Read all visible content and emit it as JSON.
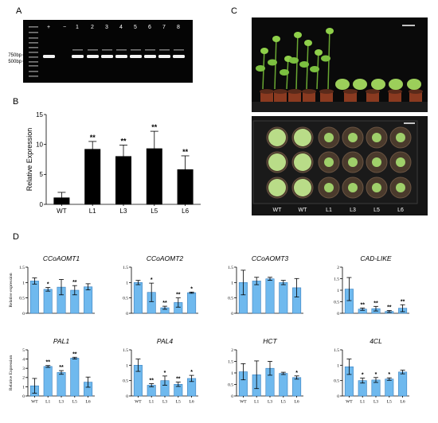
{
  "panel_labels": {
    "a": "A",
    "b": "B",
    "c": "C",
    "d": "D"
  },
  "gel": {
    "ladder_labels": [
      "750bp",
      "500bp"
    ],
    "lane_labels": [
      "+",
      "−",
      "1",
      "2",
      "3",
      "4",
      "5",
      "6",
      "7",
      "8"
    ]
  },
  "photo": {
    "lane_labels": [
      "WT",
      "WT",
      "L1",
      "L3",
      "L5",
      "L6"
    ]
  },
  "chart_data": [
    {
      "type": "bar",
      "panel": "B",
      "categories": [
        "WT",
        "L1",
        "L3",
        "L5",
        "L6"
      ],
      "values": [
        1.1,
        9.2,
        8.0,
        9.3,
        5.8
      ],
      "errors": [
        0.9,
        1.3,
        1.9,
        2.9,
        2.3
      ],
      "significance": [
        "",
        "**",
        "**",
        "**",
        "**"
      ],
      "ylabel": "Relative Expression",
      "ylim": [
        0,
        15
      ],
      "yticks": [
        0,
        5,
        10,
        15
      ],
      "color": "#000000"
    },
    {
      "type": "bar",
      "panel": "D",
      "title": "CCoAOMT1",
      "categories": [
        "WT",
        "L1",
        "L3",
        "L5",
        "L6"
      ],
      "values": [
        1.05,
        0.78,
        0.85,
        0.75,
        0.86
      ],
      "errors": [
        0.1,
        0.06,
        0.25,
        0.15,
        0.1
      ],
      "significance": [
        "",
        "*",
        "",
        "**",
        ""
      ],
      "ylabel": "Relative expression",
      "ylim": [
        0,
        1.5
      ],
      "yticks": [
        0,
        0.5,
        1,
        1.5
      ],
      "show_xticklabels": false,
      "color": "#6fb9ee"
    },
    {
      "type": "bar",
      "panel": "D",
      "title": "CCoAOMT2",
      "categories": [
        "WT",
        "L1",
        "L3",
        "L5",
        "L6"
      ],
      "values": [
        1.0,
        0.68,
        0.18,
        0.35,
        0.67
      ],
      "errors": [
        0.07,
        0.3,
        0.05,
        0.15,
        0.02
      ],
      "significance": [
        "",
        "*",
        "**",
        "**",
        "*"
      ],
      "ylabel": "",
      "ylim": [
        0,
        1.5
      ],
      "yticks": [
        0,
        0.5,
        1,
        1.5
      ],
      "show_xticklabels": false,
      "color": "#6fb9ee"
    },
    {
      "type": "bar",
      "panel": "D",
      "title": "CCoAOMT3",
      "categories": [
        "WT",
        "L1",
        "L3",
        "L5",
        "L6"
      ],
      "values": [
        1.0,
        1.05,
        1.12,
        1.0,
        0.83
      ],
      "errors": [
        0.4,
        0.12,
        0.05,
        0.07,
        0.3
      ],
      "significance": [
        "",
        "",
        "",
        "",
        ""
      ],
      "ylabel": "",
      "ylim": [
        0,
        1.5
      ],
      "yticks": [
        0,
        0.5,
        1,
        1.5
      ],
      "show_xticklabels": false,
      "color": "#6fb9ee"
    },
    {
      "type": "bar",
      "panel": "D",
      "title": "CAD-LIKE",
      "categories": [
        "WT",
        "L1",
        "L3",
        "L5",
        "L6"
      ],
      "values": [
        1.05,
        0.18,
        0.2,
        0.08,
        0.22
      ],
      "errors": [
        0.5,
        0.05,
        0.1,
        0.04,
        0.15
      ],
      "significance": [
        "",
        "**",
        "**",
        "**",
        "**"
      ],
      "ylabel": "",
      "ylim": [
        0,
        2
      ],
      "yticks": [
        0,
        0.5,
        1,
        1.5,
        2
      ],
      "show_xticklabels": false,
      "color": "#6fb9ee"
    },
    {
      "type": "bar",
      "panel": "D",
      "title": "PAL1",
      "categories": [
        "WT",
        "L1",
        "L3",
        "L5",
        "L6"
      ],
      "values": [
        1.1,
        3.2,
        2.55,
        4.1,
        1.5
      ],
      "errors": [
        0.8,
        0.1,
        0.2,
        0.1,
        0.55
      ],
      "significance": [
        "",
        "**",
        "**",
        "**",
        ""
      ],
      "ylabel": "Relative Expression",
      "ylim": [
        0,
        5
      ],
      "yticks": [
        0,
        1,
        2,
        3,
        4,
        5
      ],
      "show_xticklabels": true,
      "color": "#6fb9ee"
    },
    {
      "type": "bar",
      "panel": "D",
      "title": "PAL4",
      "categories": [
        "WT",
        "L1",
        "L3",
        "L5",
        "L6"
      ],
      "values": [
        1.0,
        0.35,
        0.5,
        0.38,
        0.57
      ],
      "errors": [
        0.2,
        0.05,
        0.15,
        0.07,
        0.1
      ],
      "significance": [
        "",
        "**",
        "*",
        "**",
        "*"
      ],
      "ylabel": "",
      "ylim": [
        0,
        1.5
      ],
      "yticks": [
        0,
        0.5,
        1,
        1.5
      ],
      "show_xticklabels": true,
      "color": "#6fb9ee"
    },
    {
      "type": "bar",
      "panel": "D",
      "title": "HCT",
      "categories": [
        "WT",
        "L1",
        "L3",
        "L5",
        "L6"
      ],
      "values": [
        1.05,
        0.92,
        1.2,
        0.98,
        0.8
      ],
      "errors": [
        0.35,
        0.6,
        0.3,
        0.05,
        0.07
      ],
      "significance": [
        "",
        "",
        "",
        "",
        "*"
      ],
      "ylabel": "",
      "ylim": [
        0,
        2
      ],
      "yticks": [
        0,
        0.5,
        1,
        1.5,
        2
      ],
      "show_xticklabels": true,
      "color": "#6fb9ee"
    },
    {
      "type": "bar",
      "panel": "D",
      "title": "4CL",
      "categories": [
        "WT",
        "L1",
        "L3",
        "L5",
        "L6"
      ],
      "values": [
        0.95,
        0.5,
        0.52,
        0.55,
        0.78
      ],
      "errors": [
        0.25,
        0.08,
        0.08,
        0.04,
        0.06
      ],
      "significance": [
        "",
        "*",
        "*",
        "*",
        ""
      ],
      "ylabel": "",
      "ylim": [
        0,
        1.5
      ],
      "yticks": [
        0,
        0.5,
        1,
        1.5
      ],
      "show_xticklabels": true,
      "color": "#6fb9ee"
    }
  ]
}
